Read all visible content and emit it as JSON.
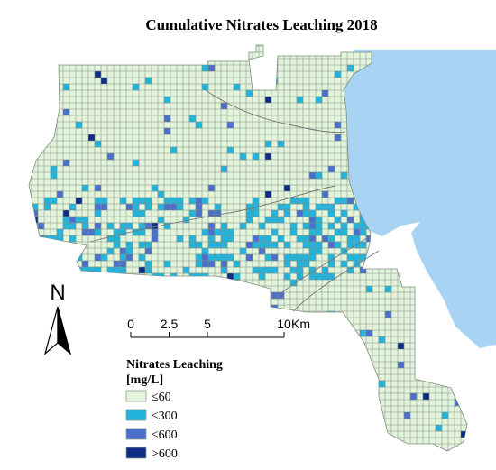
{
  "title": "Cumulative Nitrates Leaching 2018",
  "north_label": "N",
  "scale_bar": {
    "ticks": [
      0,
      2.5,
      5,
      10
    ],
    "unit": "Km"
  },
  "legend": {
    "title": "Nitrates Leaching",
    "units": "[mg/L]",
    "items": [
      {
        "label": "≤60",
        "color": "#e3f4dc"
      },
      {
        "label": "≤300",
        "color": "#22b4dc"
      },
      {
        "label": "≤600",
        "color": "#4a6fcc"
      },
      {
        "label": ">600",
        "color": "#0e2d86"
      }
    ]
  }
}
